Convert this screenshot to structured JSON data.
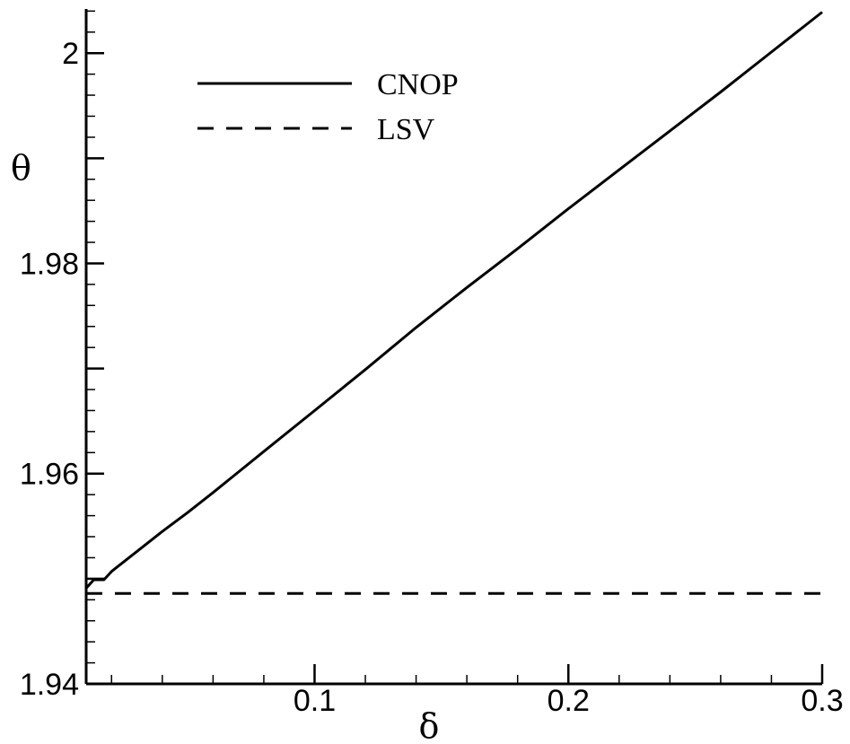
{
  "chart_data": {
    "type": "line",
    "title": "",
    "xlabel": "δ",
    "ylabel": "θ",
    "xlim": [
      0.01,
      0.3
    ],
    "ylim": [
      1.94,
      2.0042
    ],
    "xticks": [
      {
        "value": 0.1,
        "label": "0.1"
      },
      {
        "value": 0.2,
        "label": "0.2"
      },
      {
        "value": 0.3,
        "label": "0.3"
      }
    ],
    "xminor_step": 0.02,
    "yticks": [
      {
        "value": 1.94,
        "label": "1.94"
      },
      {
        "value": 1.96,
        "label": "1.96"
      },
      {
        "value": 1.98,
        "label": "1.98"
      },
      {
        "value": 2.0,
        "label": "2"
      }
    ],
    "ymajor_unlabeled": [
      1.95,
      1.97,
      1.99
    ],
    "yminor_step": 0.002,
    "grid": false,
    "legend_position": "top-left",
    "series": [
      {
        "name": "CNOP",
        "style": "solid",
        "x": [
          0.01,
          0.013,
          0.017,
          0.02,
          0.03,
          0.04,
          0.05,
          0.06,
          0.08,
          0.1,
          0.12,
          0.14,
          0.16,
          0.18,
          0.2,
          0.22,
          0.24,
          0.26,
          0.28,
          0.3
        ],
        "y": [
          1.9491,
          1.9499,
          1.9499,
          1.9507,
          1.9526,
          1.9545,
          1.9563,
          1.9582,
          1.9621,
          1.966,
          1.9699,
          1.9739,
          1.9777,
          1.9814,
          1.9852,
          1.9889,
          1.9926,
          1.9963,
          2.0001,
          2.0039
        ]
      },
      {
        "name": "LSV",
        "style": "dashed",
        "x": [
          0.01,
          0.3
        ],
        "y": [
          1.9486,
          1.9486
        ]
      }
    ]
  }
}
